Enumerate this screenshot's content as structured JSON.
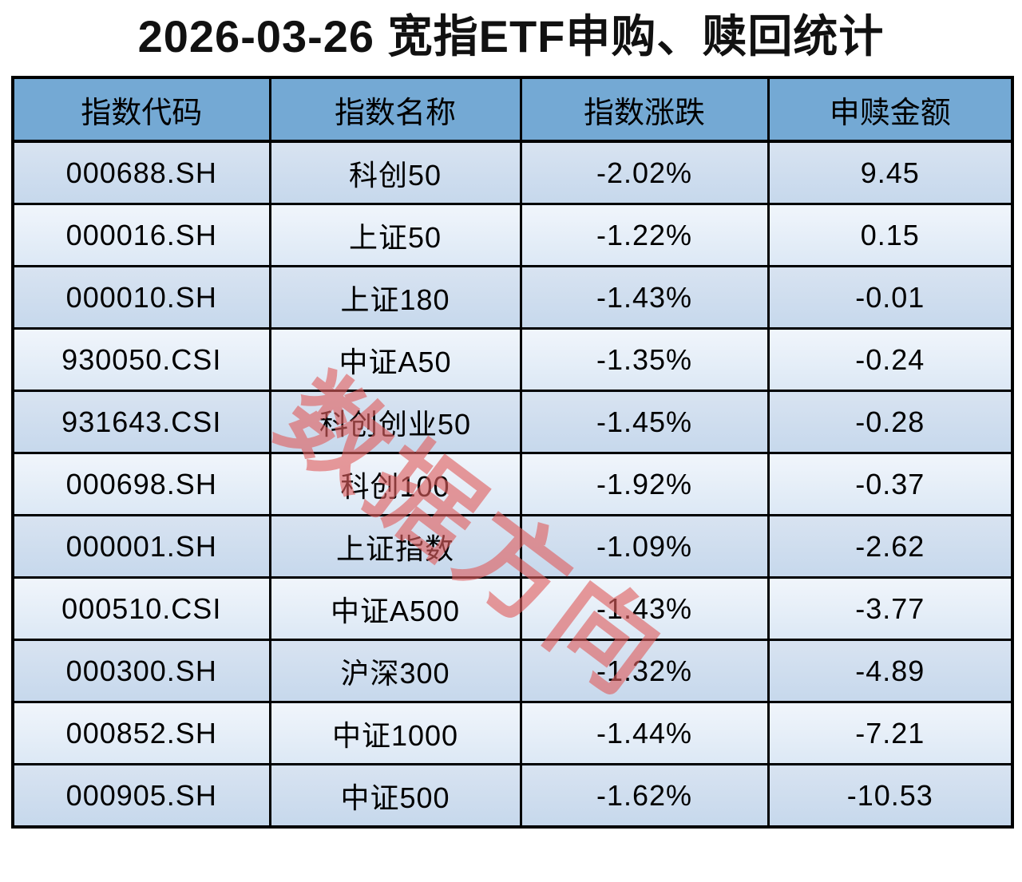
{
  "title": "2026-03-26 宽指ETF申购、赎回统计",
  "watermark": "数据方向",
  "colors": {
    "title_color": "#111111",
    "border_color": "#000000",
    "header_bg": "#74a9d4",
    "row_odd_top": "#d8e3f1",
    "row_odd_bottom": "#c6d8ec",
    "row_even_top": "#f0f5fb",
    "row_even_bottom": "#dce8f5",
    "watermark_color": "#e05f5f"
  },
  "table": {
    "columns": [
      "指数代码",
      "指数名称",
      "指数涨跌",
      "申赎金额"
    ],
    "rows": [
      {
        "code": "000688.SH",
        "name": "科创50",
        "change": "-2.02%",
        "amount": "9.45"
      },
      {
        "code": "000016.SH",
        "name": "上证50",
        "change": "-1.22%",
        "amount": "0.15"
      },
      {
        "code": "000010.SH",
        "name": "上证180",
        "change": "-1.43%",
        "amount": "-0.01"
      },
      {
        "code": "930050.CSI",
        "name": "中证A50",
        "change": "-1.35%",
        "amount": "-0.24"
      },
      {
        "code": "931643.CSI",
        "name": "科创创业50",
        "change": "-1.45%",
        "amount": "-0.28"
      },
      {
        "code": "000698.SH",
        "name": "科创100",
        "change": "-1.92%",
        "amount": "-0.37"
      },
      {
        "code": "000001.SH",
        "name": "上证指数",
        "change": "-1.09%",
        "amount": "-2.62"
      },
      {
        "code": "000510.CSI",
        "name": "中证A500",
        "change": "-1.43%",
        "amount": "-3.77"
      },
      {
        "code": "000300.SH",
        "name": "沪深300",
        "change": "-1.32%",
        "amount": "-4.89"
      },
      {
        "code": "000852.SH",
        "name": "中证1000",
        "change": "-1.44%",
        "amount": "-7.21"
      },
      {
        "code": "000905.SH",
        "name": "中证500",
        "change": "-1.62%",
        "amount": "-10.53"
      }
    ]
  },
  "chart_data": {
    "type": "table",
    "title": "2026-03-26 宽指ETF申购、赎回统计",
    "columns": [
      "指数代码",
      "指数名称",
      "指数涨跌",
      "申赎金额"
    ],
    "rows": [
      [
        "000688.SH",
        "科创50",
        "-2.02%",
        9.45
      ],
      [
        "000016.SH",
        "上证50",
        "-1.22%",
        0.15
      ],
      [
        "000010.SH",
        "上证180",
        "-1.43%",
        -0.01
      ],
      [
        "930050.CSI",
        "中证A50",
        "-1.35%",
        -0.24
      ],
      [
        "931643.CSI",
        "科创创业50",
        "-1.45%",
        -0.28
      ],
      [
        "000698.SH",
        "科创100",
        "-1.92%",
        -0.37
      ],
      [
        "000001.SH",
        "上证指数",
        "-1.09%",
        -2.62
      ],
      [
        "000510.CSI",
        "中证A500",
        "-1.43%",
        -3.77
      ],
      [
        "000300.SH",
        "沪深300",
        "-1.32%",
        -4.89
      ],
      [
        "000852.SH",
        "中证1000",
        "-1.44%",
        -7.21
      ],
      [
        "000905.SH",
        "中证500",
        "-1.62%",
        -10.53
      ]
    ],
    "notes": "Diagonal red watermark 数据方向 across table center; odd rows darker blue gradient, even rows lighter; black grid lines"
  }
}
